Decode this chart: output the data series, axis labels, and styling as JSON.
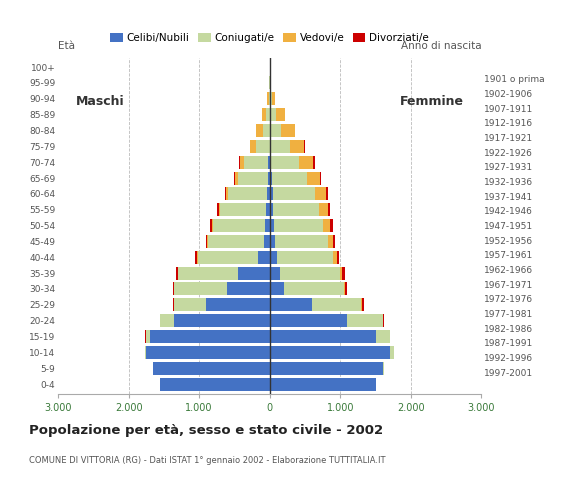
{
  "age_groups": [
    "0-4",
    "5-9",
    "10-14",
    "15-19",
    "20-24",
    "25-29",
    "30-34",
    "35-39",
    "40-44",
    "45-49",
    "50-54",
    "55-59",
    "60-64",
    "65-69",
    "70-74",
    "75-79",
    "80-84",
    "85-89",
    "90-94",
    "95-99",
    "100+"
  ],
  "birth_years": [
    "1997-2001",
    "1992-1996",
    "1987-1991",
    "1982-1986",
    "1977-1981",
    "1972-1976",
    "1967-1971",
    "1962-1966",
    "1957-1961",
    "1952-1956",
    "1947-1951",
    "1942-1946",
    "1937-1941",
    "1932-1936",
    "1927-1931",
    "1922-1926",
    "1917-1921",
    "1912-1916",
    "1907-1911",
    "1902-1906",
    "1901 o prima"
  ],
  "males": {
    "celibe": [
      1550,
      1650,
      1750,
      1700,
      1350,
      900,
      600,
      450,
      170,
      80,
      60,
      50,
      40,
      30,
      30,
      0,
      0,
      0,
      0,
      0,
      0
    ],
    "coniugato": [
      3,
      5,
      20,
      60,
      200,
      450,
      750,
      850,
      850,
      800,
      750,
      650,
      550,
      420,
      330,
      200,
      100,
      50,
      15,
      3,
      0
    ],
    "vedovo": [
      0,
      0,
      0,
      0,
      1,
      2,
      2,
      3,
      5,
      5,
      10,
      20,
      30,
      40,
      60,
      80,
      100,
      60,
      20,
      5,
      0
    ],
    "divorziato": [
      0,
      0,
      0,
      2,
      5,
      15,
      25,
      30,
      30,
      20,
      30,
      25,
      20,
      15,
      10,
      5,
      0,
      0,
      0,
      0,
      0
    ]
  },
  "females": {
    "nubile": [
      1500,
      1600,
      1700,
      1500,
      1100,
      600,
      200,
      150,
      100,
      80,
      60,
      50,
      40,
      30,
      20,
      10,
      5,
      5,
      0,
      0,
      0
    ],
    "coniugata": [
      5,
      20,
      60,
      200,
      500,
      700,
      850,
      850,
      800,
      750,
      700,
      650,
      600,
      500,
      400,
      280,
      150,
      80,
      30,
      5,
      0
    ],
    "vedova": [
      0,
      0,
      0,
      2,
      5,
      10,
      20,
      30,
      50,
      70,
      100,
      120,
      160,
      180,
      200,
      200,
      200,
      130,
      50,
      20,
      2
    ],
    "divorziata": [
      0,
      0,
      0,
      2,
      10,
      20,
      25,
      30,
      30,
      25,
      35,
      30,
      30,
      20,
      15,
      5,
      0,
      0,
      0,
      0,
      0
    ]
  },
  "color_celibe": "#4472c4",
  "color_coniugato": "#c5d9a0",
  "color_vedovo": "#f0b040",
  "color_divorziato": "#cc0000",
  "title": "Popolazione per età, sesso e stato civile - 2002",
  "subtitle": "COMUNE DI VITTORIA (RG) - Dati ISTAT 1° gennaio 2002 - Elaborazione TUTTITALIA.IT",
  "xlabel_left": "Maschi",
  "xlabel_right": "Femmine",
  "ylabel_left": "Età",
  "ylabel_right": "Anno di nascita",
  "xlim": 3000,
  "legend_labels": [
    "Celibi/Nubili",
    "Coniugati/e",
    "Vedovi/e",
    "Divorziati/e"
  ],
  "background_color": "#ffffff",
  "xtick_labels": [
    "3.000",
    "2.000",
    "1.000",
    "0",
    "1.000",
    "2.000",
    "3.000"
  ]
}
